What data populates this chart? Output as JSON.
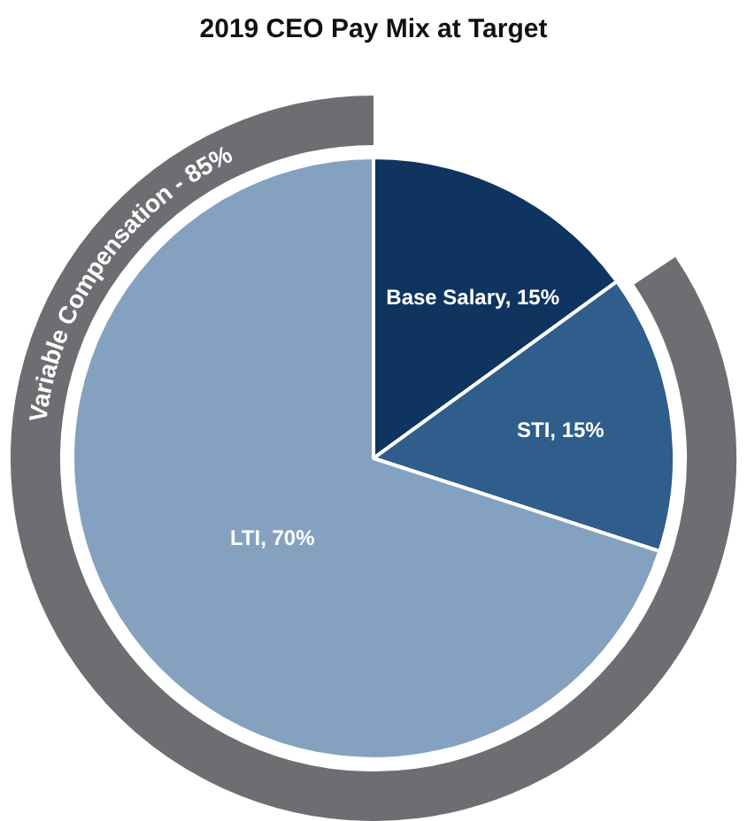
{
  "chart_data": {
    "type": "pie",
    "title": "2019 CEO Pay Mix at Target",
    "legend": false,
    "categories": [
      "Base Salary",
      "STI",
      "LTI"
    ],
    "values": [
      15,
      15,
      70
    ],
    "colors": [
      "#0f3460",
      "#2f5d8c",
      "#84a2c0"
    ],
    "value_labels": [
      "15%",
      "15%",
      "70%"
    ],
    "annotations": [
      "Variable Compensation - 85%"
    ]
  }
}
